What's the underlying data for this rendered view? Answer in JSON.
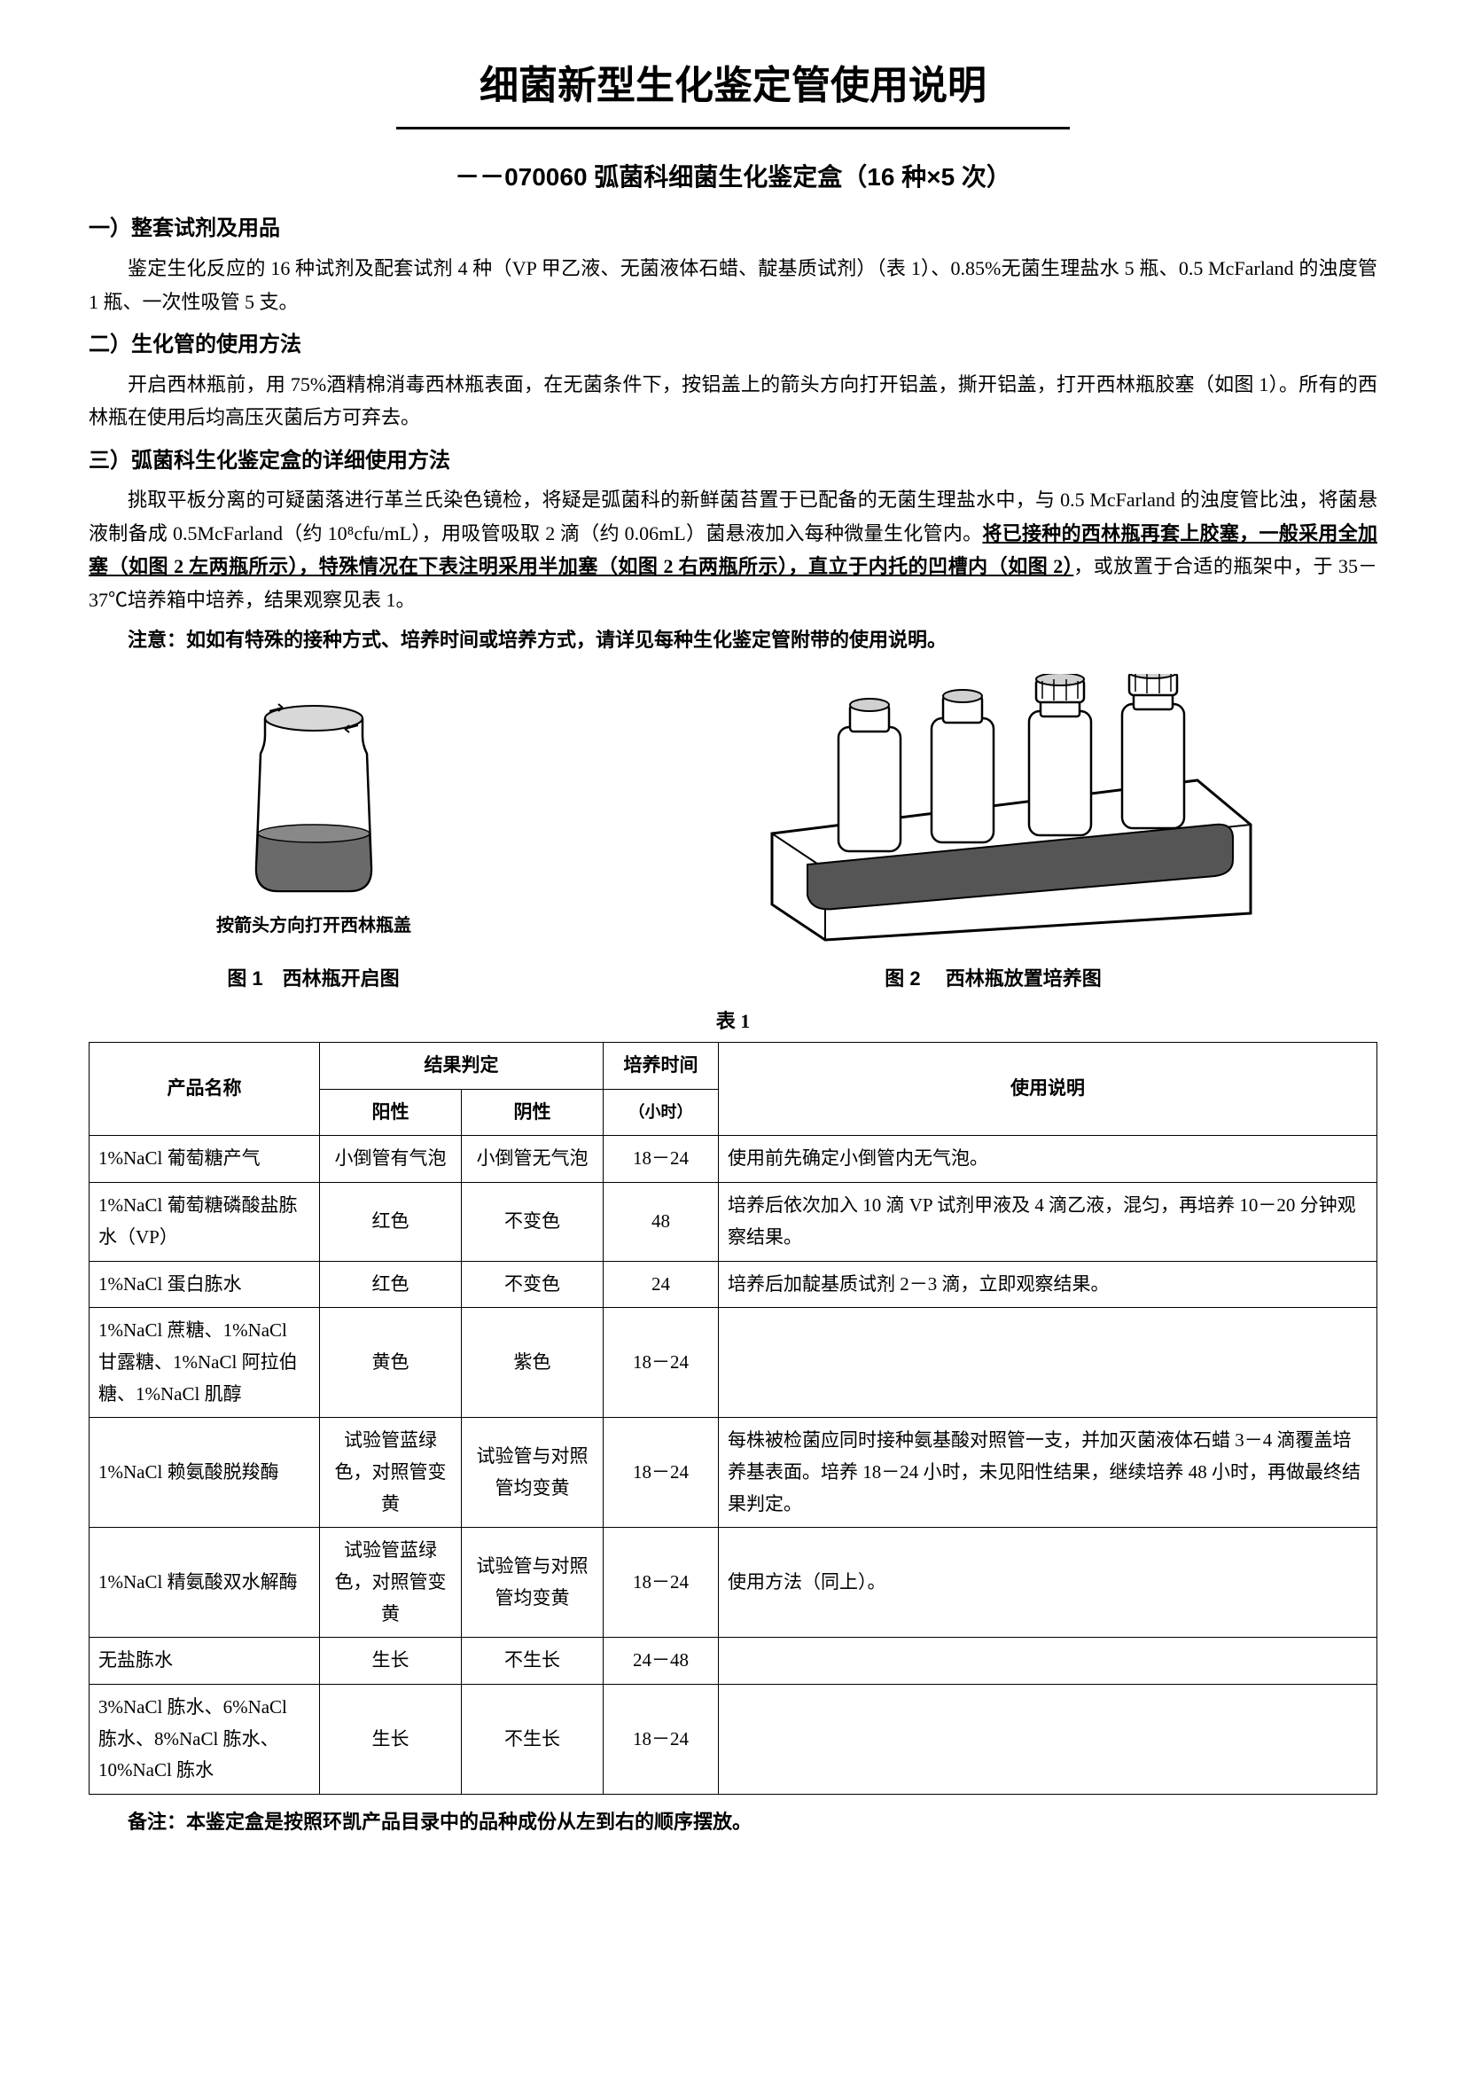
{
  "title": "细菌新型生化鉴定管使用说明",
  "subtitle": "－－070060 弧菌科细菌生化鉴定盒（16 种×5 次）",
  "section1": {
    "heading": "一）整套试剂及用品",
    "text": "鉴定生化反应的 16 种试剂及配套试剂 4 种（VP 甲乙液、无菌液体石蜡、靛基质试剂）（表 1）、0.85%无菌生理盐水 5 瓶、0.5 McFarland 的浊度管 1 瓶、一次性吸管 5 支。"
  },
  "section2": {
    "heading": "二）生化管的使用方法",
    "text": "开启西林瓶前，用 75%酒精棉消毒西林瓶表面，在无菌条件下，按铝盖上的箭头方向打开铝盖，撕开铝盖，打开西林瓶胶塞（如图 1）。所有的西林瓶在使用后均高压灭菌后方可弃去。"
  },
  "section3": {
    "heading": "三）弧菌科生化鉴定盒的详细使用方法",
    "text_a": "挑取平板分离的可疑菌落进行革兰氏染色镜检，将疑是弧菌科的新鲜菌苔置于已配备的无菌生理盐水中，与 0.5 McFarland 的浊度管比浊，将菌悬液制备成 0.5McFarland（约 10⁸cfu/mL），用吸管吸取 2 滴（约 0.06mL）菌悬液加入每种微量生化管内。",
    "text_b": "将已接种的西林瓶再套上胶塞，一般采用全加塞（如图 2 左两瓶所示），特殊情况在下表注明采用半加塞（如图 2 右两瓶所示），直立于内托的凹槽内（如图 2）",
    "text_c": "，或放置于合适的瓶架中，于 35－37℃培养箱中培养，结果观察见表 1。",
    "note": "注意：如如有特殊的接种方式、培养时间或培养方式，请详见每种生化鉴定管附带的使用说明。"
  },
  "figures": {
    "fig1": {
      "bottle_label": "按箭头方向打开西林瓶盖",
      "caption": "图 1　西林瓶开启图"
    },
    "fig2": {
      "caption": "图 2　 西林瓶放置培养图"
    }
  },
  "table": {
    "label": "表 1",
    "headers": {
      "name": "产品名称",
      "result": "结果判定",
      "positive": "阳性",
      "negative": "阴性",
      "time": "培养时间",
      "time_unit": "（小时）",
      "usage": "使用说明"
    },
    "rows": [
      {
        "name": "1%NaCl 葡萄糖产气",
        "pos": "小倒管有气泡",
        "neg": "小倒管无气泡",
        "time": "18－24",
        "usage": "使用前先确定小倒管内无气泡。"
      },
      {
        "name": "1%NaCl 葡萄糖磷酸盐胨水（VP）",
        "pos": "红色",
        "neg": "不变色",
        "time": "48",
        "usage": "培养后依次加入 10 滴 VP 试剂甲液及 4 滴乙液，混匀，再培养 10－20 分钟观察结果。"
      },
      {
        "name": "1%NaCl 蛋白胨水",
        "pos": "红色",
        "neg": "不变色",
        "time": "24",
        "usage": "培养后加靛基质试剂 2－3 滴，立即观察结果。"
      },
      {
        "name": "1%NaCl 蔗糖、1%NaCl 甘露糖、1%NaCl 阿拉伯糖、1%NaCl 肌醇",
        "pos": "黄色",
        "neg": "紫色",
        "time": "18－24",
        "usage": ""
      },
      {
        "name": "1%NaCl 赖氨酸脱羧酶",
        "pos": "试验管蓝绿色，对照管变黄",
        "neg": "试验管与对照管均变黄",
        "time": "18－24",
        "usage": "每株被检菌应同时接种氨基酸对照管一支，并加灭菌液体石蜡 3－4 滴覆盖培养基表面。培养 18－24 小时，未见阳性结果，继续培养 48 小时，再做最终结果判定。"
      },
      {
        "name": "1%NaCl 精氨酸双水解酶",
        "pos": "试验管蓝绿色，对照管变黄",
        "neg": "试验管与对照管均变黄",
        "time": "18－24",
        "usage": "使用方法（同上）。"
      },
      {
        "name": "无盐胨水",
        "pos": "生长",
        "neg": "不生长",
        "time": "24－48",
        "usage": ""
      },
      {
        "name": "3%NaCl 胨水、6%NaCl 胨水、8%NaCl 胨水、10%NaCl 胨水",
        "pos": "生长",
        "neg": "不生长",
        "time": "18－24",
        "usage": ""
      }
    ]
  },
  "footnote": "备注：本鉴定盒是按照环凯产品目录中的品种成份从左到右的顺序摆放。",
  "svg": {
    "bottle_fill": "#6a6a6a",
    "stroke": "#000000",
    "rack_fill": "#555555",
    "cap_fill": "#d0d0d0"
  }
}
